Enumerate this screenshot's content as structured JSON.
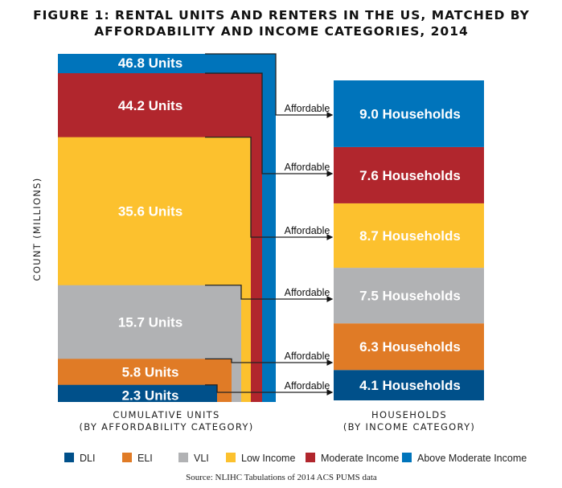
{
  "chart_data": {
    "type": "diagram-bar",
    "title_line1": "FIGURE 1: RENTAL UNITS AND RENTERS IN THE US, MATCHED BY",
    "title_line2": "AFFORDABILITY AND INCOME CATEGORIES, 2014",
    "ylabel": "COUNT (MILLIONS)",
    "left_caption_line1": "CUMULATIVE UNITS",
    "left_caption_line2": "(BY AFFORDABILITY CATEGORY)",
    "right_caption_line1": "HOUSEHOLDS",
    "right_caption_line2": "(BY INCOME CATEGORY)",
    "connector_label": "Affordable",
    "source": "Source: NLIHC Tabulations of 2014 ACS PUMS data",
    "categories": [
      "DLI",
      "ELI",
      "VLI",
      "Low Income",
      "Moderate Income",
      "Above Moderate Income"
    ],
    "colors": [
      "#00508a",
      "#e07b26",
      "#b1b2b4",
      "#fcc12e",
      "#b1262d",
      "#0074bb"
    ],
    "cumulative_units": [
      2.3,
      5.8,
      15.7,
      35.6,
      44.2,
      46.8
    ],
    "unit_labels": [
      "2.3 Units",
      "5.8 Units",
      "15.7 Units",
      "35.6 Units",
      "44.2 Units",
      "46.8 Units"
    ],
    "households": [
      4.1,
      6.3,
      7.5,
      8.7,
      7.6,
      9.0
    ],
    "household_labels": [
      "4.1 Households",
      "6.3 Households",
      "7.5 Households",
      "8.7 Households",
      "7.6 Households",
      "9.0 Households"
    ]
  }
}
